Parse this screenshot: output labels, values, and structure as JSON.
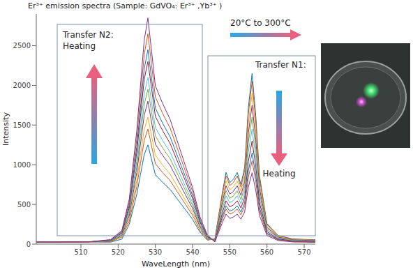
{
  "chart_data": {
    "type": "line",
    "title": "Er³⁺ emission spectra (Sample: GdVO₄: Er³⁺ ,Yb³⁺ )",
    "x_label": "WaveLength (nm)",
    "y_label": "Intensity",
    "annotations": [
      "Transfer N2: Heating",
      "20°C to 300°C",
      "Transfer N1:",
      "Heating"
    ],
    "x": [
      498,
      505,
      512,
      518,
      521,
      523,
      525,
      526,
      527,
      528,
      529,
      530,
      532,
      534,
      536,
      538,
      540,
      542,
      544,
      546,
      548,
      549,
      550,
      551,
      552,
      553,
      554,
      555,
      556,
      557,
      558,
      560,
      563,
      567,
      573
    ],
    "xlim": [
      498,
      573
    ],
    "xticks": [
      510,
      520,
      530,
      540,
      550,
      560,
      570
    ],
    "ylim": [
      0,
      2900
    ],
    "yticks": [
      0,
      500,
      1000,
      1500,
      2000,
      2500
    ],
    "grid": false,
    "series": [
      {
        "color": "#0072BD",
        "values": [
          25,
          25,
          28,
          25,
          63,
          250,
          625,
          875,
          1125,
          1250,
          1063,
          875,
          775,
          688,
          563,
          438,
          313,
          150,
          50,
          65,
          645,
          903,
          774,
          817,
          903,
          753,
          968,
          1720,
          2150,
          1613,
          860,
          258,
          108,
          65,
          54
        ]
      },
      {
        "color": "#D95319",
        "values": [
          25,
          25,
          28,
          29,
          87,
          290,
          725,
          1015,
          1305,
          1450,
          1233,
          1015,
          899,
          798,
          653,
          508,
          363,
          174,
          58,
          62,
          615,
          861,
          738,
          779,
          861,
          718,
          923,
          1640,
          2050,
          1538,
          820,
          246,
          103,
          62,
          51
        ]
      },
      {
        "color": "#EDB120",
        "values": [
          25,
          25,
          28,
          32,
          96,
          320,
          800,
          1120,
          1440,
          1600,
          1360,
          1120,
          992,
          880,
          720,
          560,
          400,
          192,
          64,
          57,
          570,
          798,
          684,
          722,
          798,
          665,
          855,
          1520,
          1900,
          1425,
          760,
          228,
          95,
          57,
          48
        ]
      },
      {
        "color": "#7E2F8E",
        "values": [
          25,
          25,
          28,
          36,
          108,
          360,
          900,
          1260,
          1620,
          1800,
          1530,
          1260,
          1116,
          990,
          810,
          630,
          450,
          216,
          72,
          53,
          525,
          735,
          630,
          665,
          735,
          613,
          788,
          1400,
          1750,
          1313,
          700,
          210,
          88,
          53,
          44
        ]
      },
      {
        "color": "#77AC30",
        "values": [
          25,
          25,
          28,
          39,
          117,
          390,
          975,
          1365,
          1755,
          1950,
          1658,
          1365,
          1209,
          1073,
          878,
          683,
          488,
          234,
          78,
          48,
          480,
          672,
          576,
          608,
          672,
          560,
          720,
          1280,
          1600,
          1200,
          640,
          192,
          80,
          48,
          40
        ]
      },
      {
        "color": "#4DBEEE",
        "values": [
          25,
          25,
          28,
          42,
          126,
          420,
          1050,
          1470,
          1890,
          2100,
          1785,
          1470,
          1302,
          1155,
          945,
          735,
          525,
          252,
          84,
          44,
          435,
          609,
          522,
          551,
          609,
          508,
          653,
          1160,
          1450,
          1088,
          580,
          174,
          73,
          44,
          36
        ]
      },
      {
        "color": "#A2142F",
        "values": [
          25,
          25,
          28,
          46,
          138,
          460,
          1150,
          1610,
          2070,
          2300,
          1955,
          1610,
          1426,
          1265,
          1035,
          805,
          575,
          276,
          92,
          39,
          390,
          546,
          468,
          494,
          546,
          455,
          585,
          1040,
          1300,
          975,
          520,
          156,
          65,
          39,
          33
        ]
      },
      {
        "color": "#0072BD",
        "values": [
          25,
          25,
          28,
          49,
          147,
          490,
          1225,
          1715,
          2205,
          2450,
          2083,
          1715,
          1519,
          1348,
          1103,
          858,
          613,
          294,
          98,
          35,
          345,
          483,
          414,
          437,
          483,
          403,
          518,
          920,
          1150,
          863,
          460,
          138,
          58,
          35,
          29
        ]
      },
      {
        "color": "#D95319",
        "values": [
          25,
          25,
          28,
          53,
          159,
          530,
          1325,
          1855,
          2385,
          2650,
          2253,
          1855,
          1643,
          1458,
          1193,
          928,
          663,
          318,
          106,
          32,
          315,
          441,
          378,
          399,
          441,
          368,
          473,
          840,
          1050,
          788,
          420,
          126,
          53,
          32,
          26
        ]
      },
      {
        "color": "#7E2F8E",
        "values": [
          25,
          25,
          28,
          57,
          171,
          570,
          1425,
          1995,
          2565,
          2850,
          2423,
          1995,
          1767,
          1568,
          1283,
          998,
          713,
          342,
          114,
          27,
          270,
          378,
          324,
          342,
          378,
          315,
          405,
          720,
          900,
          675,
          360,
          108,
          45,
          27,
          23
        ]
      }
    ]
  }
}
